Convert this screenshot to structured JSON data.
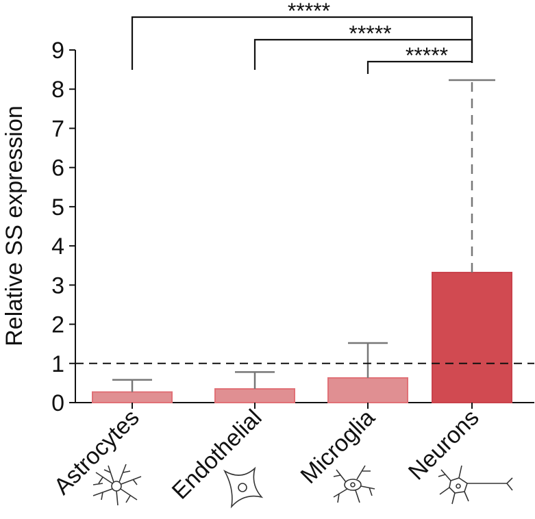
{
  "chart_data": {
    "type": "bar",
    "y_label": "Relative SS expression",
    "categories": [
      "Astrocytes",
      "Endothelial",
      "Microglia",
      "Neurons"
    ],
    "values": [
      0.27,
      0.35,
      0.63,
      3.32
    ],
    "errors": [
      0.31,
      0.43,
      0.89,
      4.91
    ],
    "colors": [
      "#e08f92",
      "#e08f92",
      "#e08f92",
      "#d14a51"
    ],
    "ylim": [
      0,
      9
    ],
    "yticks": [
      0,
      1,
      2,
      3,
      4,
      5,
      6,
      7,
      8,
      9
    ],
    "reference_line": 1,
    "significance": [
      {
        "label": "*****",
        "from": 0,
        "to": 3
      },
      {
        "label": "*****",
        "from": 1,
        "to": 3
      },
      {
        "label": "*****",
        "from": 2,
        "to": 3
      }
    ]
  }
}
